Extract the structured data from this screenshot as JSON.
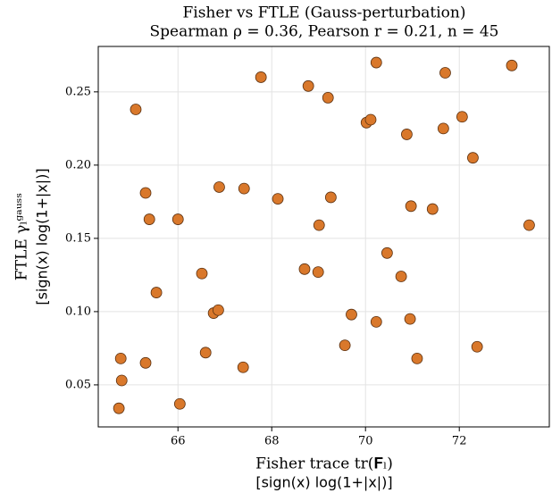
{
  "chart_data": {
    "type": "scatter",
    "title": "Fisher vs FTLE (Gauss-perturbation)",
    "subtitle": "Spearman ρ = 0.36,  Pearson r = 0.21,  n = 45",
    "xlabel": [
      "Fisher trace tr(𝐅ₗ)",
      "[sign(x) log(1+|x|)]"
    ],
    "ylabel": [
      "FTLE γₗᵍᵃᵘˢˢ",
      "[sign(x) log(1+|x|)]"
    ],
    "color": "#d9782b",
    "edgecolor": "#5a3010",
    "grid": true,
    "xlim": [
      64.3,
      73.92
    ],
    "ylim": [
      0.0213,
      0.281
    ],
    "xticks": [
      66,
      68,
      70,
      72
    ],
    "yticks": [
      0.05,
      {
        "value": 0.1,
        "label": "0.10"
      },
      0.15,
      {
        "value": 0.2,
        "label": "0.20"
      },
      0.25
    ],
    "x": [
      65.1,
      67.77,
      68.78,
      69.2,
      70.23,
      70.02,
      70.11,
      71.7,
      73.12,
      70.88,
      71.66,
      72.06,
      72.29,
      65.31,
      66.88,
      67.41,
      68.13,
      69.26,
      65.39,
      66.0,
      70.97,
      71.43,
      69.01,
      73.49,
      70.46,
      66.51,
      68.7,
      68.99,
      70.76,
      65.54,
      66.76,
      66.86,
      69.7,
      70.23,
      70.95,
      69.56,
      72.38,
      64.78,
      66.59,
      65.31,
      67.39,
      71.1,
      64.8,
      66.04,
      64.74
    ],
    "values": [
      0.238,
      0.26,
      0.254,
      0.246,
      0.27,
      0.229,
      0.231,
      0.263,
      0.268,
      0.221,
      0.225,
      0.233,
      0.205,
      0.181,
      0.185,
      0.184,
      0.177,
      0.178,
      0.163,
      0.163,
      0.172,
      0.17,
      0.159,
      0.159,
      0.14,
      0.126,
      0.129,
      0.127,
      0.124,
      0.113,
      0.099,
      0.101,
      0.098,
      0.093,
      0.095,
      0.077,
      0.076,
      0.068,
      0.072,
      0.065,
      0.062,
      0.068,
      0.053,
      0.037,
      0.034
    ]
  }
}
